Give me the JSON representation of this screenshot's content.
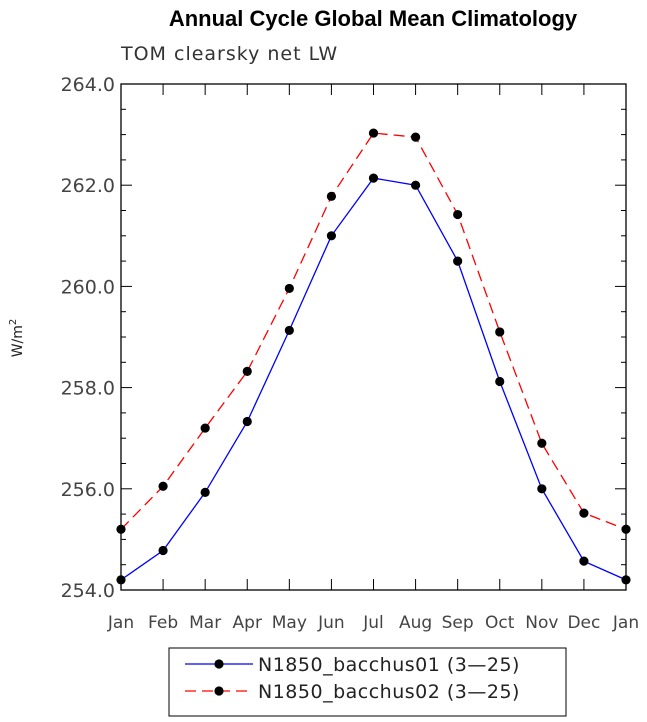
{
  "chart_data": {
    "type": "line",
    "title": "Annual Cycle Global Mean Climatology",
    "subtitle": "TOM clearsky net LW",
    "ylabel": "W/m",
    "ylabel_superscript": "2",
    "xlabel": "",
    "categories": [
      "Jan",
      "Feb",
      "Mar",
      "Apr",
      "May",
      "Jun",
      "Jul",
      "Aug",
      "Sep",
      "Oct",
      "Nov",
      "Dec",
      "Jan"
    ],
    "ylim": [
      254.0,
      264.0
    ],
    "yticks": [
      "254.0",
      "256.0",
      "258.0",
      "260.0",
      "262.0",
      "264.0"
    ],
    "grid": false,
    "legend_position": "bottom",
    "series": [
      {
        "name": "N1850_bacchus01 (3—25)",
        "color": "#0000ff",
        "dash": "solid",
        "values": [
          254.2,
          254.78,
          255.93,
          257.33,
          259.13,
          261.0,
          262.14,
          262.0,
          260.5,
          258.12,
          256.0,
          254.57,
          254.2
        ]
      },
      {
        "name": "N1850_bacchus02 (3—25)",
        "color": "#ff0000",
        "dash": "dashed",
        "values": [
          255.2,
          256.05,
          257.2,
          258.32,
          259.96,
          261.78,
          263.03,
          262.95,
          261.42,
          259.1,
          256.9,
          255.52,
          255.2
        ]
      }
    ]
  }
}
